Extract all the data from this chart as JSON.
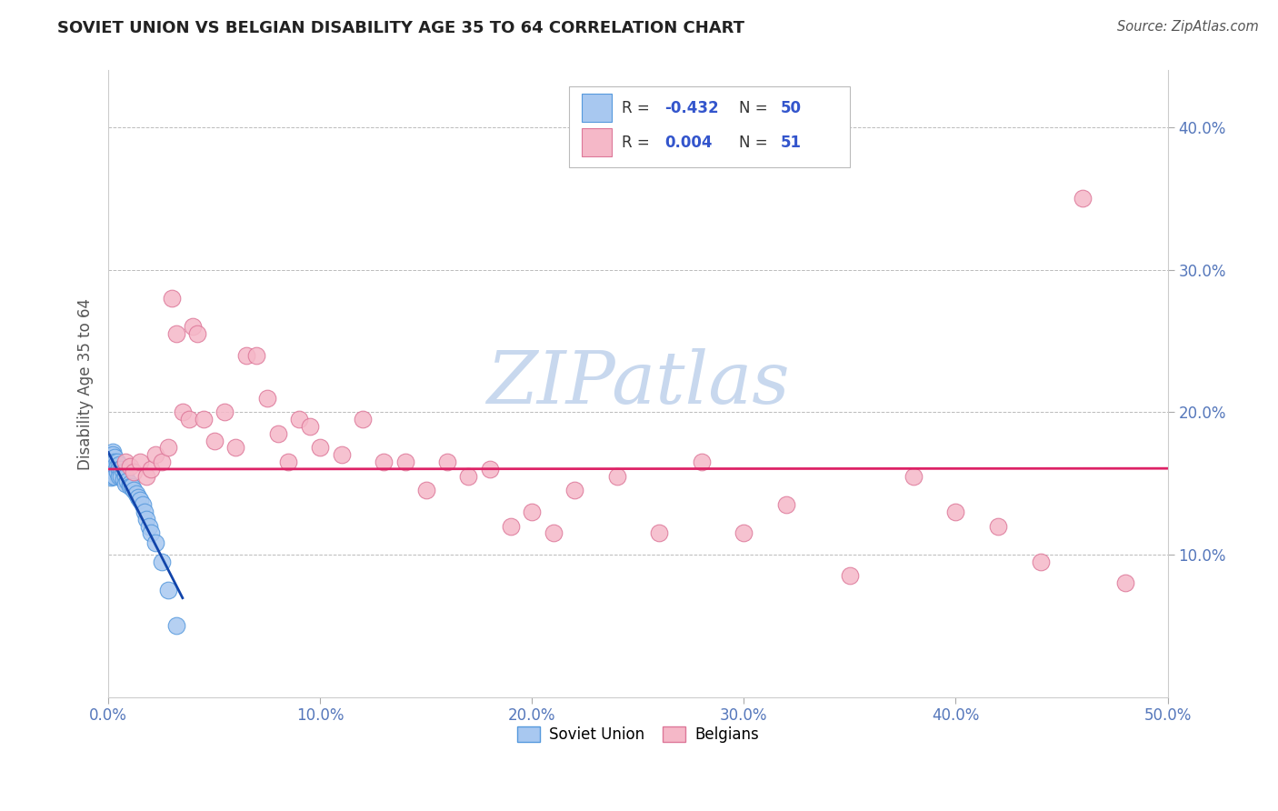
{
  "title": "SOVIET UNION VS BELGIAN DISABILITY AGE 35 TO 64 CORRELATION CHART",
  "source_text": "Source: ZipAtlas.com",
  "ylabel": "Disability Age 35 to 64",
  "xlim": [
    0.0,
    0.5
  ],
  "ylim": [
    0.0,
    0.44
  ],
  "xtick_labels": [
    "0.0%",
    "10.0%",
    "20.0%",
    "30.0%",
    "40.0%",
    "50.0%"
  ],
  "xtick_vals": [
    0.0,
    0.1,
    0.2,
    0.3,
    0.4,
    0.5
  ],
  "ytick_labels": [
    "10.0%",
    "20.0%",
    "30.0%",
    "40.0%"
  ],
  "ytick_vals": [
    0.1,
    0.2,
    0.3,
    0.4
  ],
  "soviet_R": "-0.432",
  "soviet_N": "50",
  "belgian_R": "0.004",
  "belgian_N": "51",
  "soviet_color": "#a8c8f0",
  "soviet_edge": "#5599dd",
  "belgian_color": "#f5b8c8",
  "belgian_edge": "#dd7799",
  "trendline_soviet_color": "#1144aa",
  "trendline_belgian_color": "#dd2266",
  "watermark_color": "#c8d8ee",
  "grid_color": "#bbbbbb",
  "title_color": "#222222",
  "source_color": "#555555",
  "axis_label_color": "#555555",
  "tick_color": "#5577bb",
  "legend_R_color": "#3355cc",
  "legend_label_color": "#333333",
  "soviet_x": [
    0.001,
    0.001,
    0.001,
    0.001,
    0.001,
    0.001,
    0.001,
    0.001,
    0.001,
    0.002,
    0.002,
    0.002,
    0.002,
    0.002,
    0.002,
    0.002,
    0.003,
    0.003,
    0.003,
    0.003,
    0.003,
    0.004,
    0.004,
    0.004,
    0.005,
    0.005,
    0.005,
    0.006,
    0.006,
    0.007,
    0.007,
    0.008,
    0.008,
    0.009,
    0.01,
    0.01,
    0.011,
    0.012,
    0.013,
    0.014,
    0.015,
    0.016,
    0.017,
    0.018,
    0.019,
    0.02,
    0.022,
    0.025,
    0.028,
    0.032
  ],
  "soviet_y": [
    0.17,
    0.168,
    0.166,
    0.164,
    0.162,
    0.16,
    0.158,
    0.156,
    0.154,
    0.172,
    0.17,
    0.165,
    0.163,
    0.16,
    0.158,
    0.155,
    0.168,
    0.165,
    0.162,
    0.158,
    0.155,
    0.165,
    0.162,
    0.158,
    0.163,
    0.16,
    0.155,
    0.16,
    0.155,
    0.158,
    0.153,
    0.155,
    0.15,
    0.152,
    0.15,
    0.148,
    0.148,
    0.145,
    0.143,
    0.14,
    0.138,
    0.135,
    0.13,
    0.125,
    0.12,
    0.115,
    0.108,
    0.095,
    0.075,
    0.05
  ],
  "belgian_x": [
    0.008,
    0.01,
    0.012,
    0.015,
    0.018,
    0.02,
    0.022,
    0.025,
    0.028,
    0.03,
    0.032,
    0.035,
    0.038,
    0.04,
    0.042,
    0.045,
    0.05,
    0.055,
    0.06,
    0.065,
    0.07,
    0.075,
    0.08,
    0.085,
    0.09,
    0.095,
    0.1,
    0.11,
    0.12,
    0.13,
    0.14,
    0.15,
    0.16,
    0.17,
    0.18,
    0.19,
    0.2,
    0.21,
    0.22,
    0.24,
    0.26,
    0.28,
    0.3,
    0.32,
    0.35,
    0.38,
    0.4,
    0.42,
    0.44,
    0.46,
    0.48
  ],
  "belgian_y": [
    0.165,
    0.162,
    0.158,
    0.165,
    0.155,
    0.16,
    0.17,
    0.165,
    0.175,
    0.28,
    0.255,
    0.2,
    0.195,
    0.26,
    0.255,
    0.195,
    0.18,
    0.2,
    0.175,
    0.24,
    0.24,
    0.21,
    0.185,
    0.165,
    0.195,
    0.19,
    0.175,
    0.17,
    0.195,
    0.165,
    0.165,
    0.145,
    0.165,
    0.155,
    0.16,
    0.12,
    0.13,
    0.115,
    0.145,
    0.155,
    0.115,
    0.165,
    0.115,
    0.135,
    0.085,
    0.155,
    0.13,
    0.12,
    0.095,
    0.35,
    0.08
  ],
  "belgian_trend_y_intercept": 0.16,
  "belgian_trend_slope": 0.001
}
